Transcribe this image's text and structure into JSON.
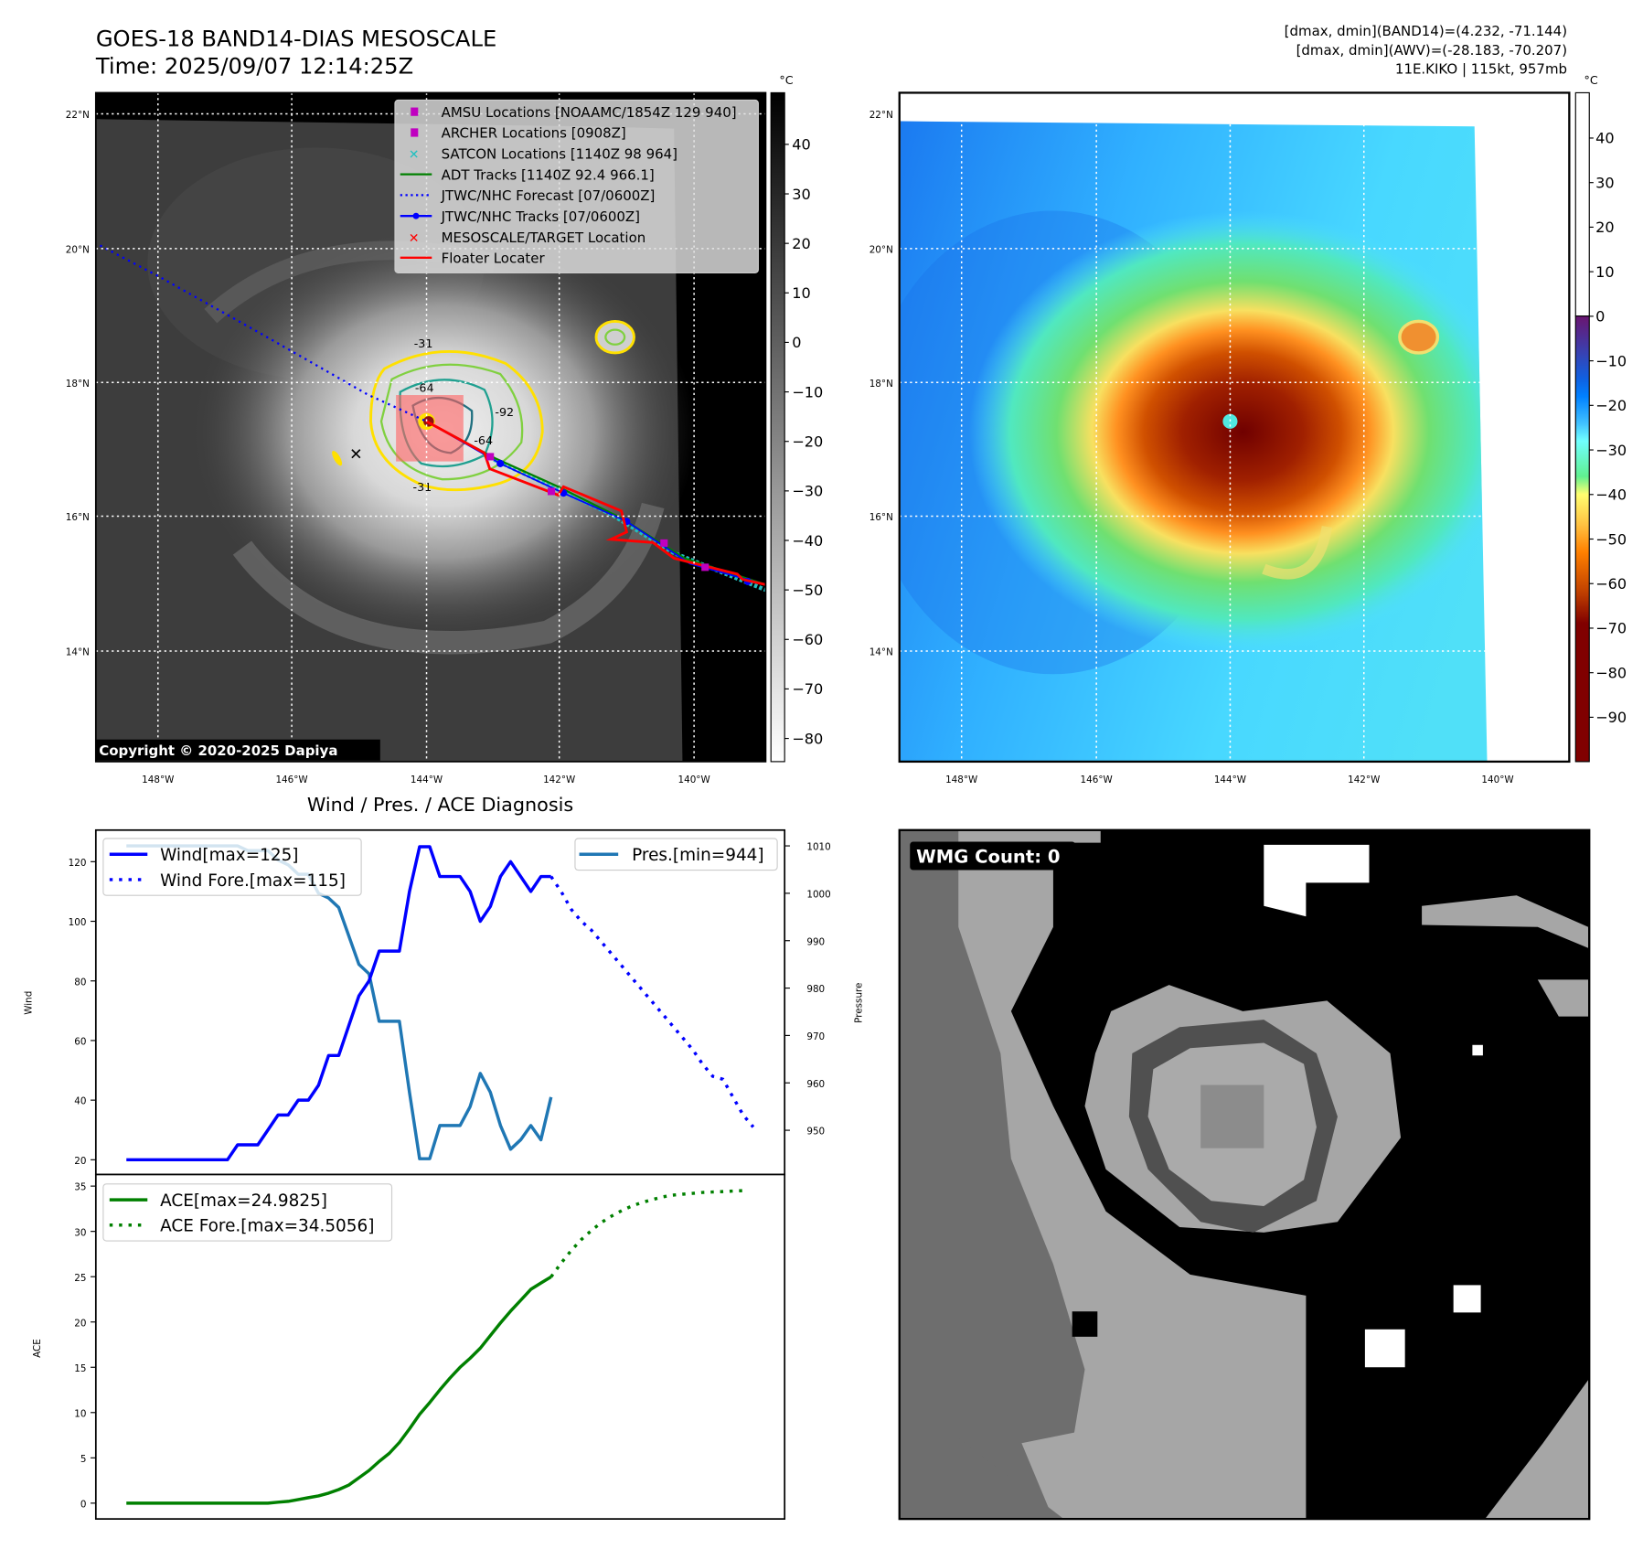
{
  "header": {
    "title_line1": "GOES-18 BAND14-DIAS MESOSCALE",
    "title_line2": "Time: 2025/09/07 12:14:25Z",
    "info_line1": "[dmax, dmin](BAND14)=(4.232, -71.144)",
    "info_line2": "[dmax, dmin](AWV)=(-28.183, -70.207)",
    "info_line3": "11E.KIKO | 115kt, 957mb"
  },
  "map_left": {
    "unit": "°C",
    "lat_labels": [
      "22°N",
      "20°N",
      "18°N",
      "16°N",
      "14°N"
    ],
    "lon_labels": [
      "148°W",
      "146°W",
      "144°W",
      "142°W",
      "140°W"
    ],
    "colorbar_ticks": [
      "40",
      "30",
      "20",
      "10",
      "0",
      "−10",
      "−20",
      "−30",
      "−40",
      "−50",
      "−60",
      "−70",
      "−80"
    ],
    "copyright": "Copyright © 2020-2025 Dapiya",
    "contour_labels": [
      "-31",
      "-64",
      "-92",
      "-64",
      "-31"
    ],
    "legend": [
      {
        "label": "AMSU Locations [NOAAMC/1854Z 129 940]",
        "color": "#c000c0"
      },
      {
        "label": "ARCHER Locations [0908Z]",
        "color": "#c000c0"
      },
      {
        "label": "SATCON Locations [1140Z 98 964]",
        "color": "#20c0c0"
      },
      {
        "label": "ADT Tracks [1140Z 92.4 966.1]",
        "color": "#008000"
      },
      {
        "label": "JTWC/NHC Forecast [07/0600Z]",
        "color": "#0000ff"
      },
      {
        "label": "JTWC/NHC Tracks [07/0600Z]",
        "color": "#0000ff"
      },
      {
        "label": "MESOSCALE/TARGET Location",
        "color": "#ff0000"
      },
      {
        "label": "Floater Locater",
        "color": "#ff0000"
      }
    ]
  },
  "map_right": {
    "unit": "°C",
    "lat_labels": [
      "22°N",
      "20°N",
      "18°N",
      "16°N",
      "14°N"
    ],
    "lon_labels": [
      "148°W",
      "146°W",
      "144°W",
      "142°W",
      "140°W"
    ],
    "colorbar_ticks": [
      "40",
      "30",
      "20",
      "10",
      "0",
      "−10",
      "−20",
      "−30",
      "−40",
      "−50",
      "−60",
      "−70",
      "−80",
      "−90"
    ]
  },
  "wmg": {
    "label": "WMG Count: 0"
  },
  "chart_data": [
    {
      "type": "line",
      "title": "Wind / Pres. / ACE Diagnosis",
      "ylabel": "Wind",
      "y2label": "Pressure",
      "ylim": [
        16,
        130
      ],
      "y2lim": [
        941,
        1012
      ],
      "yticks": [
        "20",
        "40",
        "60",
        "80",
        "100",
        "120"
      ],
      "y2ticks": [
        "950",
        "960",
        "970",
        "980",
        "990",
        "1000",
        "1010"
      ],
      "series": [
        {
          "name": "Wind[max=125]",
          "color": "#0000ff",
          "style": "solid",
          "x_start": 0,
          "values": [
            20,
            20,
            20,
            20,
            20,
            20,
            20,
            20,
            20,
            20,
            20,
            25,
            25,
            25,
            30,
            35,
            35,
            40,
            40,
            45,
            55,
            55,
            65,
            75,
            80,
            90,
            90,
            90,
            110,
            125,
            125,
            115,
            115,
            115,
            110,
            100,
            105,
            115,
            120,
            115,
            110,
            115,
            115
          ]
        },
        {
          "name": "Wind Fore.[max=115]",
          "color": "#0000ff",
          "style": "dotted",
          "x_start": 42,
          "values": [
            115,
            110,
            104,
            100,
            97,
            93,
            89,
            85,
            81,
            77,
            73,
            69,
            65,
            61,
            57,
            52,
            48,
            47,
            41,
            35,
            31
          ]
        },
        {
          "name": "Pres.[min=944]",
          "color": "#1f77b4",
          "style": "solid",
          "axis": "right",
          "x_start": 0,
          "values": [
            1010,
            1010,
            1010,
            1010,
            1010,
            1010,
            1010,
            1010,
            1010,
            1010,
            1010,
            1010,
            1009,
            1009,
            1009,
            1007,
            1006,
            1004,
            1004,
            1000,
            999,
            997,
            991,
            985,
            983,
            973,
            973,
            973,
            958,
            944,
            944,
            951,
            951,
            951,
            955,
            962,
            958,
            951,
            946,
            948,
            951,
            948,
            957
          ]
        }
      ]
    },
    {
      "type": "line",
      "ylabel": "ACE",
      "ylim": [
        -1.5,
        36.5
      ],
      "yticks": [
        "0",
        "5",
        "10",
        "15",
        "20",
        "25",
        "30",
        "35"
      ],
      "series": [
        {
          "name": "ACE[max=24.9825]",
          "color": "#008000",
          "style": "solid",
          "x_start": 0,
          "values": [
            0,
            0,
            0,
            0,
            0,
            0,
            0,
            0,
            0,
            0,
            0,
            0,
            0,
            0,
            0,
            0.1,
            0.2,
            0.4,
            0.6,
            0.8,
            1.1,
            1.5,
            2.0,
            2.8,
            3.6,
            4.6,
            5.5,
            6.7,
            8.2,
            9.8,
            11.1,
            12.5,
            13.8,
            15.0,
            16.0,
            17.1,
            18.5,
            19.9,
            21.2,
            22.4,
            23.6,
            24.3,
            24.98
          ]
        },
        {
          "name": "ACE Fore.[max=34.5056]",
          "color": "#008000",
          "style": "dotted",
          "x_start": 42,
          "values": [
            24.98,
            26.5,
            27.9,
            29.1,
            30.1,
            31.0,
            31.7,
            32.3,
            32.8,
            33.2,
            33.5,
            33.8,
            34.0,
            34.1,
            34.2,
            34.3,
            34.35,
            34.4,
            34.45,
            34.5
          ]
        }
      ]
    }
  ]
}
